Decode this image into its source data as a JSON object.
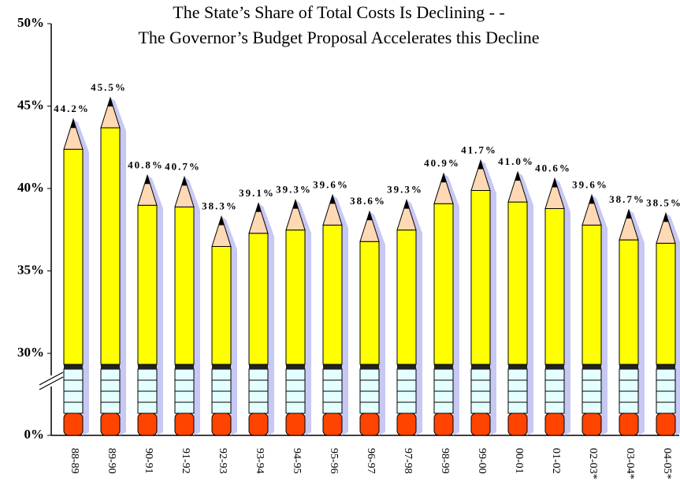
{
  "chart_data": {
    "type": "bar",
    "title": [
      "The State’s Share of Total Costs Is Declining - -",
      "The Governor’s Budget Proposal Accelerates this Decline"
    ],
    "categories": [
      "88-89",
      "89-90",
      "90-91",
      "91-92",
      "92-93",
      "93-94",
      "94-95",
      "95-96",
      "96-97",
      "97-98",
      "98-99",
      "99-00",
      "00-01",
      "01-02",
      "02-03*",
      "03-04*",
      "04-05*"
    ],
    "values": [
      44.2,
      45.5,
      40.8,
      40.7,
      38.3,
      39.1,
      39.3,
      39.6,
      38.6,
      39.3,
      40.9,
      41.7,
      41.0,
      40.6,
      39.6,
      38.7,
      38.5
    ],
    "value_labels": [
      "44.2%",
      "45.5%",
      "40.8%",
      "40.7%",
      "38.3%",
      "39.1%",
      "39.3%",
      "39.6%",
      "38.6%",
      "39.3%",
      "40.9%",
      "41.7%",
      "41.0%",
      "40.6%",
      "39.6%",
      "38.7%",
      "38.5%"
    ],
    "color": "#ffff00",
    "ylim": [
      0,
      50
    ],
    "yticks": [
      {
        "value": 0,
        "label": "0%"
      },
      {
        "value": 30,
        "label": "30%"
      },
      {
        "value": 35,
        "label": "35%"
      },
      {
        "value": 40,
        "label": "40%"
      },
      {
        "value": 45,
        "label": "45%"
      },
      {
        "value": 50,
        "label": "50%"
      }
    ],
    "grid": false
  }
}
